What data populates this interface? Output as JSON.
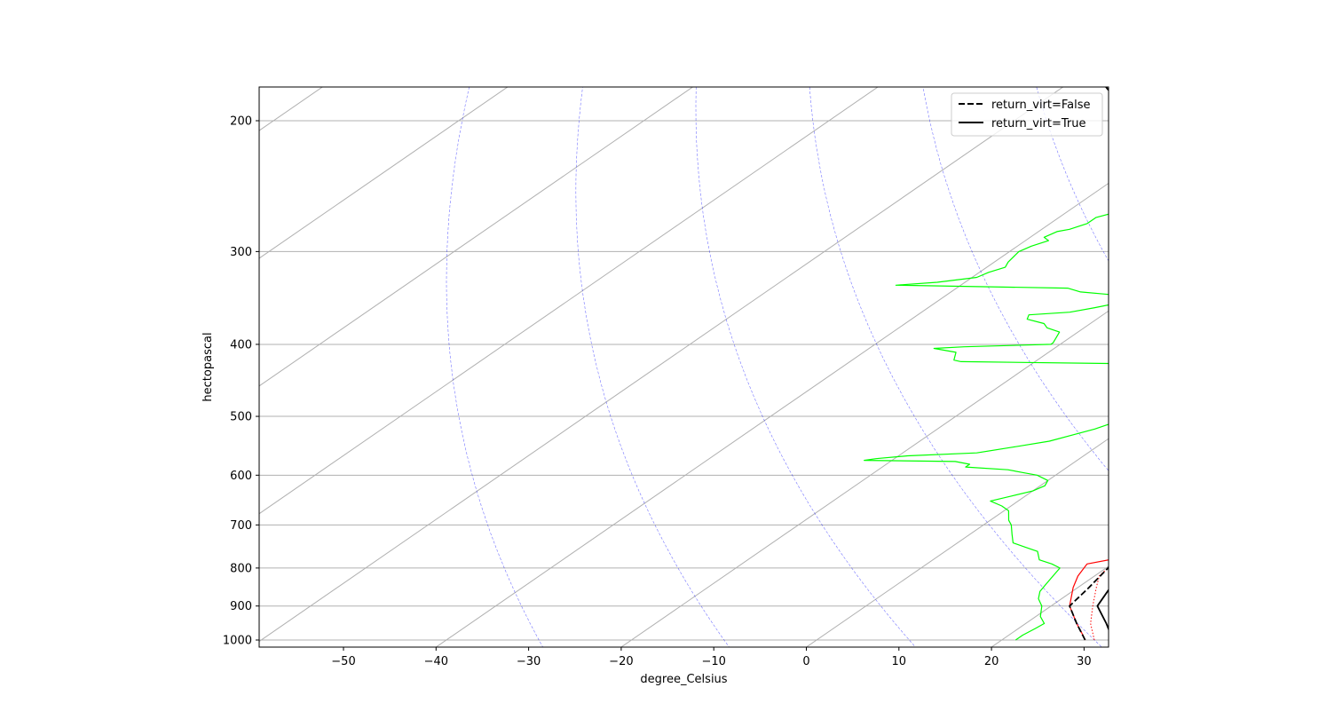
{
  "chart_data": {
    "type": "skewt",
    "title": "",
    "xlabel": "degree_Celsius",
    "ylabel": "hectopascal",
    "xlim": [
      -59,
      33
    ],
    "ylim": [
      1020,
      170
    ],
    "x_ticks": [
      -50,
      -40,
      -30,
      -20,
      -10,
      0,
      10,
      20,
      30
    ],
    "x_tick_labels": [
      "−50",
      "−40",
      "−30",
      "−20",
      "−10",
      "0",
      "10",
      "20",
      "30"
    ],
    "y_ticks": [
      200,
      300,
      400,
      500,
      600,
      700,
      800,
      900,
      1000
    ],
    "y_tick_labels": [
      "200",
      "300",
      "400",
      "500",
      "600",
      "700",
      "800",
      "900",
      "1000"
    ],
    "isotherms": [
      -160,
      -140,
      -120,
      -100,
      -80,
      -60,
      -40,
      -20,
      0,
      20,
      40
    ],
    "dry_adiabats": [
      -30,
      -10,
      10,
      30,
      50,
      70,
      90,
      110,
      130,
      150
    ],
    "grid": true,
    "colors": {
      "temperature": "#ff0000",
      "dewpoint": "#00ff00",
      "parcel": "#000000",
      "adiabats": "#0000ff",
      "grid": "#b0b0b0"
    },
    "series": [
      {
        "name": "temperature",
        "style": "solid",
        "points": [
          [
            1000,
            29
          ],
          [
            985,
            28
          ],
          [
            950,
            25.5
          ],
          [
            900,
            22
          ],
          [
            850,
            19.5
          ],
          [
            820,
            18.2
          ],
          [
            790,
            17.3
          ],
          [
            780,
            19
          ],
          [
            760,
            20
          ],
          [
            740,
            20.5
          ],
          [
            720,
            20
          ],
          [
            700,
            18.7
          ],
          [
            680,
            17
          ],
          [
            650,
            15.5
          ],
          [
            620,
            13.5
          ],
          [
            600,
            13
          ],
          [
            590,
            12.5
          ],
          [
            570,
            12
          ],
          [
            550,
            9.5
          ],
          [
            520,
            6.5
          ],
          [
            500,
            4.5
          ],
          [
            480,
            3
          ],
          [
            460,
            1.5
          ],
          [
            440,
            0.5
          ],
          [
            430,
            -0.5
          ],
          [
            410,
            -1.5
          ],
          [
            400,
            -1.5
          ],
          [
            380,
            -3.5
          ],
          [
            360,
            -6
          ],
          [
            350,
            -8
          ],
          [
            340,
            -9
          ],
          [
            330,
            -8
          ],
          [
            315,
            -9
          ],
          [
            300,
            -12
          ],
          [
            290,
            -13
          ],
          [
            280,
            -15
          ],
          [
            270,
            -16
          ],
          [
            260,
            -17
          ],
          [
            250,
            -19
          ],
          [
            240,
            -20.5
          ],
          [
            230,
            -22
          ],
          [
            220,
            -23.5
          ],
          [
            210,
            -25
          ],
          [
            205,
            -26
          ],
          [
            200,
            -24.5
          ],
          [
            195,
            -24
          ],
          [
            190,
            -23.5
          ],
          [
            185,
            -25
          ],
          [
            175,
            -26.5
          ],
          [
            170,
            -27
          ]
        ]
      },
      {
        "name": "dewpoint",
        "style": "solid",
        "points": [
          [
            1000,
            21.5
          ],
          [
            985,
            21.5
          ],
          [
            965,
            21.8
          ],
          [
            950,
            22
          ],
          [
            930,
            20.5
          ],
          [
            900,
            19
          ],
          [
            880,
            17.5
          ],
          [
            860,
            16.5
          ],
          [
            840,
            16
          ],
          [
            820,
            15.5
          ],
          [
            800,
            15
          ],
          [
            790,
            13.5
          ],
          [
            780,
            11.5
          ],
          [
            760,
            10
          ],
          [
            750,
            8
          ],
          [
            740,
            6
          ],
          [
            720,
            4.5
          ],
          [
            700,
            3
          ],
          [
            690,
            2
          ],
          [
            670,
            0.5
          ],
          [
            660,
            -1
          ],
          [
            650,
            -3
          ],
          [
            640,
            -1.5
          ],
          [
            630,
            0
          ],
          [
            620,
            0.5
          ],
          [
            610,
            0
          ],
          [
            600,
            -2
          ],
          [
            595,
            -4
          ],
          [
            590,
            -6
          ],
          [
            585,
            -11
          ],
          [
            580,
            -11
          ],
          [
            575,
            -13
          ],
          [
            573,
            -23
          ],
          [
            570,
            -22
          ],
          [
            565,
            -19
          ],
          [
            560,
            -12
          ],
          [
            550,
            -9
          ],
          [
            540,
            -6
          ],
          [
            530,
            -4.5
          ],
          [
            520,
            -3
          ],
          [
            500,
            -1
          ],
          [
            490,
            -1
          ],
          [
            480,
            -1.5
          ],
          [
            470,
            -2.5
          ],
          [
            460,
            -3.5
          ],
          [
            455,
            -3.5
          ],
          [
            440,
            -6
          ],
          [
            430,
            -6.5
          ],
          [
            425,
            -8
          ],
          [
            422,
            -28
          ],
          [
            420,
            -29
          ],
          [
            415,
            -29.5
          ],
          [
            410,
            -30
          ],
          [
            405,
            -33
          ],
          [
            403,
            -30
          ],
          [
            400,
            -21
          ],
          [
            398,
            -21
          ],
          [
            385,
            -22
          ],
          [
            380,
            -24
          ],
          [
            375,
            -25
          ],
          [
            370,
            -27.5
          ],
          [
            365,
            -28
          ],
          [
            362,
            -24
          ],
          [
            357,
            -22
          ],
          [
            350,
            -19.5
          ],
          [
            345,
            -19.5
          ],
          [
            340,
            -26
          ],
          [
            336,
            -28
          ],
          [
            333,
            -47
          ],
          [
            330,
            -43
          ],
          [
            325,
            -39.5
          ],
          [
            320,
            -39
          ],
          [
            315,
            -38
          ],
          [
            310,
            -38.5
          ],
          [
            300,
            -39
          ],
          [
            295,
            -38.5
          ],
          [
            290,
            -37.5
          ],
          [
            287,
            -38.5
          ],
          [
            282,
            -38
          ],
          [
            280,
            -37
          ],
          [
            275,
            -36
          ],
          [
            270,
            -36
          ],
          [
            265,
            -34.5
          ],
          [
            260,
            -34.5
          ],
          [
            255,
            -33.5
          ],
          [
            250,
            -33
          ],
          [
            245,
            -33.5
          ],
          [
            240,
            -36
          ],
          [
            235,
            -38
          ],
          [
            232,
            -40
          ],
          [
            225,
            -41
          ],
          [
            220,
            -41.5
          ],
          [
            215,
            -42.5
          ],
          [
            210,
            -43
          ],
          [
            205,
            -44
          ],
          [
            200,
            -44.5
          ],
          [
            195,
            -47
          ],
          [
            190,
            -50
          ],
          [
            185,
            -51.5
          ],
          [
            180,
            -52
          ],
          [
            175,
            -51.5
          ],
          [
            172,
            -52
          ]
        ]
      },
      {
        "name": "virtual temperature",
        "style": "dotted",
        "points": [
          [
            1000,
            30
          ],
          [
            950,
            27
          ],
          [
            900,
            24.5
          ],
          [
            850,
            22
          ],
          [
            820,
            20.5
          ],
          [
            790,
            20
          ],
          [
            780,
            21
          ],
          [
            760,
            21.5
          ],
          [
            740,
            21.5
          ],
          [
            720,
            21
          ],
          [
            700,
            19.8
          ],
          [
            680,
            18
          ],
          [
            650,
            16.3
          ],
          [
            620,
            14.2
          ],
          [
            600,
            13.6
          ],
          [
            570,
            12.5
          ],
          [
            550,
            10
          ],
          [
            520,
            7
          ],
          [
            500,
            5
          ],
          [
            480,
            3.5
          ],
          [
            460,
            2
          ],
          [
            440,
            0.8
          ],
          [
            430,
            -0.2
          ],
          [
            410,
            -1.3
          ],
          [
            400,
            -1.4
          ]
        ]
      },
      {
        "name": "return_virt=False",
        "style": "dashed",
        "points": [
          [
            1000,
            29
          ],
          [
            950,
            25.5
          ],
          [
            900,
            22
          ],
          [
            850,
            21.2
          ],
          [
            800,
            20.2
          ],
          [
            750,
            19
          ],
          [
            700,
            17.6
          ],
          [
            650,
            15.9
          ],
          [
            600,
            13.8
          ],
          [
            550,
            11.2
          ],
          [
            500,
            8
          ],
          [
            450,
            3.9
          ],
          [
            400,
            -1.4
          ],
          [
            350,
            -8.3
          ],
          [
            300,
            -17.5
          ],
          [
            250,
            -30
          ],
          [
            200,
            -47
          ],
          [
            170,
            -60
          ]
        ]
      },
      {
        "name": "return_virt=True",
        "style": "solid",
        "points": [
          [
            1000,
            32
          ],
          [
            950,
            28.7
          ],
          [
            900,
            25
          ],
          [
            850,
            23.5
          ],
          [
            800,
            22.2
          ],
          [
            750,
            20.8
          ],
          [
            700,
            19.1
          ],
          [
            650,
            17.2
          ],
          [
            600,
            14.9
          ],
          [
            550,
            12
          ],
          [
            500,
            8.6
          ],
          [
            450,
            4.3
          ],
          [
            400,
            -1.1
          ],
          [
            350,
            -8.1
          ],
          [
            300,
            -17.4
          ],
          [
            250,
            -30
          ],
          [
            200,
            -47
          ],
          [
            170,
            -60
          ]
        ]
      }
    ],
    "legend": {
      "position": "top-right",
      "entries": [
        {
          "label": "return_virt=False",
          "style": "dashed"
        },
        {
          "label": "return_virt=True",
          "style": "solid"
        }
      ]
    }
  }
}
